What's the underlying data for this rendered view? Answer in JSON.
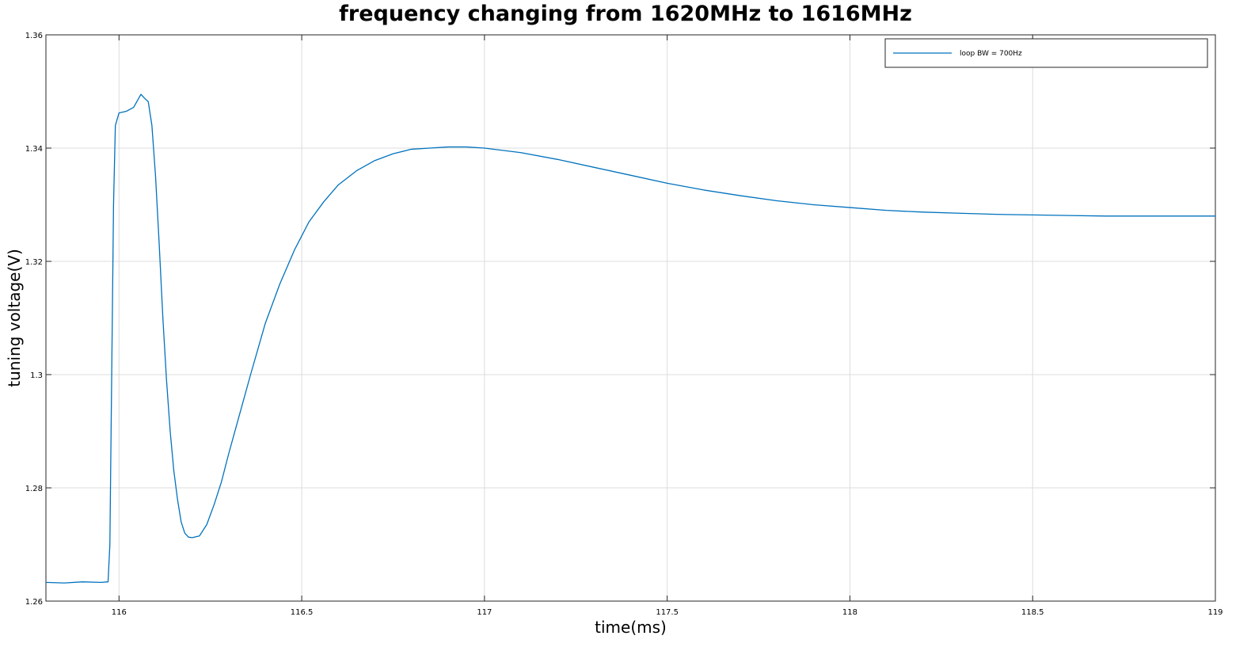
{
  "chart_data": {
    "type": "line",
    "title": "frequency changing from 1620MHz to 1616MHz",
    "xlabel": "time(ms)",
    "ylabel": "tuning voltage(V)",
    "xlim": [
      115.8,
      119
    ],
    "ylim": [
      1.26,
      1.36
    ],
    "x_ticks": [
      116,
      116.5,
      117,
      117.5,
      118,
      118.5,
      119
    ],
    "x_tick_labels": [
      "116",
      "116.5",
      "117",
      "117.5",
      "118",
      "118.5",
      "119"
    ],
    "y_ticks": [
      1.26,
      1.28,
      1.3,
      1.32,
      1.34,
      1.36
    ],
    "y_tick_labels": [
      "1.26",
      "1.28",
      "1.3",
      "1.32",
      "1.34",
      "1.36"
    ],
    "grid": true,
    "legend_position": "top-right",
    "series": [
      {
        "name": "loop BW = 700Hz",
        "color": "#0072bd",
        "x": [
          115.8,
          115.85,
          115.9,
          115.95,
          115.97,
          115.975,
          115.98,
          115.985,
          115.99,
          116.0,
          116.02,
          116.04,
          116.06,
          116.07,
          116.08,
          116.09,
          116.1,
          116.11,
          116.12,
          116.13,
          116.14,
          116.15,
          116.16,
          116.17,
          116.18,
          116.19,
          116.2,
          116.22,
          116.24,
          116.26,
          116.28,
          116.3,
          116.33,
          116.36,
          116.4,
          116.44,
          116.48,
          116.52,
          116.56,
          116.6,
          116.65,
          116.7,
          116.75,
          116.8,
          116.85,
          116.9,
          116.95,
          117.0,
          117.1,
          117.2,
          117.3,
          117.4,
          117.5,
          117.6,
          117.7,
          117.8,
          117.9,
          118.0,
          118.1,
          118.2,
          118.3,
          118.4,
          118.5,
          118.6,
          118.7,
          118.8,
          118.9,
          119.0
        ],
        "y": [
          1.2633,
          1.2632,
          1.2634,
          1.2633,
          1.2634,
          1.27,
          1.3,
          1.33,
          1.344,
          1.3462,
          1.3465,
          1.3472,
          1.3495,
          1.3488,
          1.3482,
          1.344,
          1.335,
          1.323,
          1.31,
          1.299,
          1.29,
          1.283,
          1.278,
          1.274,
          1.272,
          1.2713,
          1.2712,
          1.2715,
          1.2735,
          1.277,
          1.281,
          1.286,
          1.293,
          1.3,
          1.309,
          1.316,
          1.322,
          1.327,
          1.3305,
          1.3335,
          1.336,
          1.3378,
          1.339,
          1.3398,
          1.34,
          1.3402,
          1.3402,
          1.34,
          1.3392,
          1.338,
          1.3366,
          1.3352,
          1.3338,
          1.3326,
          1.3316,
          1.3307,
          1.33,
          1.3295,
          1.329,
          1.3287,
          1.3285,
          1.3283,
          1.3282,
          1.3281,
          1.328,
          1.328,
          1.328,
          1.328
        ]
      }
    ]
  }
}
